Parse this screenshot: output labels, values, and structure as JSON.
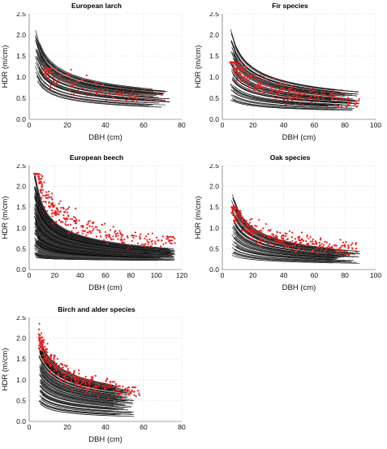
{
  "chart_data": [
    {
      "type": "line",
      "title": "European larch",
      "xlabel": "DBH (cm)",
      "ylabel": "HDR (m/cm)",
      "xlim": [
        0,
        80
      ],
      "ylim": [
        0,
        2.5
      ],
      "xticks": [
        "0",
        "20",
        "40",
        "60",
        "80"
      ],
      "yticks": [
        "0.0",
        "0.5",
        "1.0",
        "1.5",
        "2.0",
        "2.5"
      ],
      "grid": true,
      "curves": {
        "count": 45,
        "dbh_range": [
          3,
          75
        ],
        "hdr_at_min_dbh": [
          1.05,
          2.25
        ],
        "hdr_at_max_dbh": [
          0.28,
          0.68
        ]
      },
      "observations": {
        "count": 130,
        "dbh_range": [
          8,
          72
        ],
        "hdr_range": [
          0.45,
          1.2
        ]
      }
    },
    {
      "type": "line",
      "title": "Fir species",
      "xlabel": "DBH (cm)",
      "ylabel": "HDR (m/cm)",
      "xlim": [
        0,
        100
      ],
      "ylim": [
        0,
        2.5
      ],
      "xticks": [
        "0",
        "20",
        "40",
        "60",
        "80",
        "100"
      ],
      "yticks": [
        "0.0",
        "0.5",
        "1.0",
        "1.5",
        "2.0",
        "2.5"
      ],
      "grid": true,
      "curves": {
        "count": 55,
        "dbh_range": [
          5,
          90
        ],
        "hdr_at_min_dbh": [
          0.45,
          2.2
        ],
        "hdr_at_max_dbh": [
          0.2,
          0.65
        ]
      },
      "observations": {
        "count": 260,
        "dbh_range": [
          5,
          90
        ],
        "hdr_range": [
          0.3,
          1.35
        ]
      }
    },
    {
      "type": "line",
      "title": "European beech",
      "xlabel": "DBH (cm)",
      "ylabel": "HDR (m/cm)",
      "xlim": [
        0,
        120
      ],
      "ylim": [
        0,
        2.5
      ],
      "xticks": [
        "0",
        "20",
        "40",
        "60",
        "80",
        "100",
        "120"
      ],
      "yticks": [
        "0.0",
        "0.5",
        "1.0",
        "1.5",
        "2.0",
        "2.5"
      ],
      "grid": true,
      "curves": {
        "count": 240,
        "dbh_range": [
          4,
          115
        ],
        "hdr_at_min_dbh": [
          0.3,
          2.45
        ],
        "hdr_at_max_dbh": [
          0.22,
          0.5
        ]
      },
      "observations": {
        "count": 320,
        "dbh_range": [
          4,
          115
        ],
        "hdr_range": [
          0.25,
          2.3
        ]
      }
    },
    {
      "type": "line",
      "title": "Oak species",
      "xlabel": "DBH (cm)",
      "ylabel": "HDR (m/cm)",
      "xlim": [
        0,
        100
      ],
      "ylim": [
        0,
        2.5
      ],
      "xticks": [
        "0",
        "20",
        "40",
        "60",
        "80",
        "100"
      ],
      "yticks": [
        "0.0",
        "0.5",
        "1.0",
        "1.5",
        "2.0",
        "2.5"
      ],
      "grid": true,
      "curves": {
        "count": 60,
        "dbh_range": [
          6,
          90
        ],
        "hdr_at_min_dbh": [
          0.35,
          1.95
        ],
        "hdr_at_max_dbh": [
          0.15,
          0.45
        ]
      },
      "observations": {
        "count": 300,
        "dbh_range": [
          6,
          88
        ],
        "hdr_range": [
          0.35,
          1.5
        ]
      }
    },
    {
      "type": "line",
      "title": "Birch and alder species",
      "xlabel": "DBH (cm)",
      "ylabel": "HDR (m/cm)",
      "xlim": [
        0,
        80
      ],
      "ylim": [
        0,
        2.5
      ],
      "xticks": [
        "0",
        "20",
        "40",
        "60",
        "80"
      ],
      "yticks": [
        "0.0",
        "0.5",
        "1.0",
        "1.5",
        "2.0",
        "2.5"
      ],
      "grid": true,
      "curves": {
        "count": 90,
        "dbh_range": [
          5,
          55
        ],
        "hdr_at_min_dbh": [
          0.45,
          2.05
        ],
        "hdr_at_max_dbh": [
          0.12,
          0.8
        ]
      },
      "observations": {
        "count": 280,
        "dbh_range": [
          5,
          58
        ],
        "hdr_range": [
          0.15,
          2.35
        ]
      }
    }
  ]
}
